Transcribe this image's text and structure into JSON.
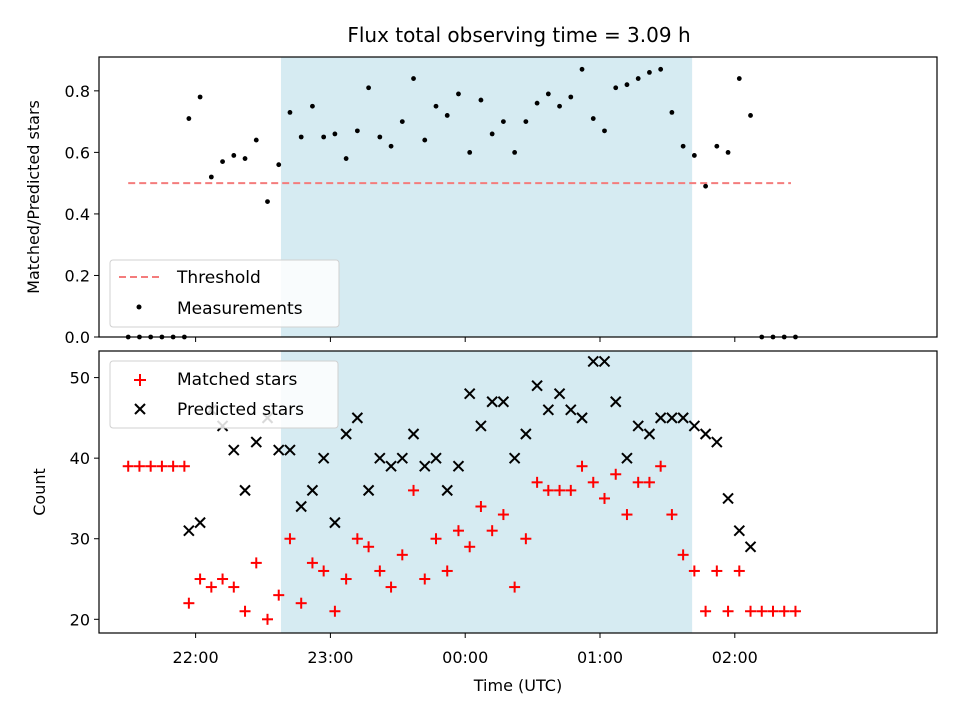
{
  "title": "Flux total observing time = 3.09 h",
  "chart_data": [
    {
      "type": "scatter",
      "panel": "top",
      "ylabel": "Matched/Predicted stars",
      "ylim": [
        0,
        0.91
      ],
      "yticks": [
        0.0,
        0.2,
        0.4,
        0.6,
        0.8
      ],
      "ytick_labels": [
        "0.0",
        "0.2",
        "0.4",
        "0.6",
        "0.8"
      ],
      "threshold": {
        "name": "Threshold",
        "y": 0.5,
        "x_start": "21:30",
        "x_end": "02:25",
        "color": "#f47c7c",
        "style": "dashed"
      },
      "series": [
        {
          "name": "Measurements",
          "marker": "dot",
          "color": "#000000",
          "points": [
            [
              "21:30",
              0.0
            ],
            [
              "21:35",
              0.0
            ],
            [
              "21:40",
              0.0
            ],
            [
              "21:45",
              0.0
            ],
            [
              "21:50",
              0.0
            ],
            [
              "21:55",
              0.0
            ],
            [
              "21:57",
              0.71
            ],
            [
              "22:02",
              0.78
            ],
            [
              "22:07",
              0.52
            ],
            [
              "22:12",
              0.57
            ],
            [
              "22:17",
              0.59
            ],
            [
              "22:22",
              0.58
            ],
            [
              "22:27",
              0.64
            ],
            [
              "22:32",
              0.44
            ],
            [
              "22:37",
              0.56
            ],
            [
              "22:42",
              0.73
            ],
            [
              "22:47",
              0.65
            ],
            [
              "22:52",
              0.75
            ],
            [
              "22:57",
              0.65
            ],
            [
              "23:02",
              0.66
            ],
            [
              "23:07",
              0.58
            ],
            [
              "23:12",
              0.67
            ],
            [
              "23:17",
              0.81
            ],
            [
              "23:22",
              0.65
            ],
            [
              "23:27",
              0.62
            ],
            [
              "23:32",
              0.7
            ],
            [
              "23:37",
              0.84
            ],
            [
              "23:42",
              0.64
            ],
            [
              "23:47",
              0.75
            ],
            [
              "23:52",
              0.72
            ],
            [
              "23:57",
              0.79
            ],
            [
              "00:02",
              0.6
            ],
            [
              "00:07",
              0.77
            ],
            [
              "00:12",
              0.66
            ],
            [
              "00:17",
              0.7
            ],
            [
              "00:22",
              0.6
            ],
            [
              "00:27",
              0.7
            ],
            [
              "00:32",
              0.76
            ],
            [
              "00:37",
              0.79
            ],
            [
              "00:42",
              0.75
            ],
            [
              "00:47",
              0.78
            ],
            [
              "00:52",
              0.87
            ],
            [
              "00:57",
              0.71
            ],
            [
              "01:02",
              0.67
            ],
            [
              "01:07",
              0.81
            ],
            [
              "01:12",
              0.82
            ],
            [
              "01:17",
              0.84
            ],
            [
              "01:22",
              0.86
            ],
            [
              "01:27",
              0.87
            ],
            [
              "01:32",
              0.73
            ],
            [
              "01:37",
              0.62
            ],
            [
              "01:42",
              0.59
            ],
            [
              "01:47",
              0.49
            ],
            [
              "01:52",
              0.62
            ],
            [
              "01:57",
              0.6
            ],
            [
              "02:02",
              0.84
            ],
            [
              "02:07",
              0.72
            ],
            [
              "02:12",
              0.0
            ],
            [
              "02:17",
              0.0
            ],
            [
              "02:22",
              0.0
            ],
            [
              "02:27",
              0.0
            ]
          ]
        }
      ],
      "legend": {
        "placement": "lower-left",
        "entries": [
          "Threshold",
          "Measurements"
        ]
      }
    },
    {
      "type": "scatter",
      "panel": "bottom",
      "ylabel": "Count",
      "xlabel": "Time (UTC)",
      "ylim": [
        18.3,
        53.3
      ],
      "yticks": [
        20,
        30,
        40,
        50
      ],
      "ytick_labels": [
        "20",
        "30",
        "40",
        "50"
      ],
      "series": [
        {
          "name": "Matched stars",
          "marker": "plus",
          "color": "#ff0000",
          "points": [
            [
              "21:30",
              39
            ],
            [
              "21:35",
              39
            ],
            [
              "21:40",
              39
            ],
            [
              "21:45",
              39
            ],
            [
              "21:50",
              39
            ],
            [
              "21:55",
              39
            ],
            [
              "21:57",
              22
            ],
            [
              "22:02",
              25
            ],
            [
              "22:07",
              24
            ],
            [
              "22:12",
              25
            ],
            [
              "22:17",
              24
            ],
            [
              "22:22",
              21
            ],
            [
              "22:27",
              27
            ],
            [
              "22:32",
              20
            ],
            [
              "22:37",
              23
            ],
            [
              "22:42",
              30
            ],
            [
              "22:47",
              22
            ],
            [
              "22:52",
              27
            ],
            [
              "22:57",
              26
            ],
            [
              "23:02",
              21
            ],
            [
              "23:07",
              25
            ],
            [
              "23:12",
              30
            ],
            [
              "23:17",
              29
            ],
            [
              "23:22",
              26
            ],
            [
              "23:27",
              24
            ],
            [
              "23:32",
              28
            ],
            [
              "23:37",
              36
            ],
            [
              "23:42",
              25
            ],
            [
              "23:47",
              30
            ],
            [
              "23:52",
              26
            ],
            [
              "23:57",
              31
            ],
            [
              "00:02",
              29
            ],
            [
              "00:07",
              34
            ],
            [
              "00:12",
              31
            ],
            [
              "00:17",
              33
            ],
            [
              "00:22",
              24
            ],
            [
              "00:27",
              30
            ],
            [
              "00:32",
              37
            ],
            [
              "00:37",
              36
            ],
            [
              "00:42",
              36
            ],
            [
              "00:47",
              36
            ],
            [
              "00:52",
              39
            ],
            [
              "00:57",
              37
            ],
            [
              "01:02",
              35
            ],
            [
              "01:07",
              38
            ],
            [
              "01:12",
              33
            ],
            [
              "01:17",
              37
            ],
            [
              "01:22",
              37
            ],
            [
              "01:27",
              39
            ],
            [
              "01:32",
              33
            ],
            [
              "01:37",
              28
            ],
            [
              "01:42",
              26
            ],
            [
              "01:47",
              21
            ],
            [
              "01:52",
              26
            ],
            [
              "01:57",
              21
            ],
            [
              "02:02",
              26
            ],
            [
              "02:07",
              21
            ],
            [
              "02:12",
              21
            ],
            [
              "02:17",
              21
            ],
            [
              "02:22",
              21
            ],
            [
              "02:27",
              21
            ]
          ]
        },
        {
          "name": "Predicted stars",
          "marker": "x",
          "color": "#000000",
          "points": [
            [
              "21:57",
              31
            ],
            [
              "22:02",
              32
            ],
            [
              "22:07",
              46
            ],
            [
              "22:12",
              44
            ],
            [
              "22:17",
              41
            ],
            [
              "22:22",
              36
            ],
            [
              "22:27",
              42
            ],
            [
              "22:32",
              45
            ],
            [
              "22:37",
              41
            ],
            [
              "22:42",
              41
            ],
            [
              "22:47",
              34
            ],
            [
              "22:52",
              36
            ],
            [
              "22:57",
              40
            ],
            [
              "23:02",
              32
            ],
            [
              "23:07",
              43
            ],
            [
              "23:12",
              45
            ],
            [
              "23:17",
              36
            ],
            [
              "23:22",
              40
            ],
            [
              "23:27",
              39
            ],
            [
              "23:32",
              40
            ],
            [
              "23:37",
              43
            ],
            [
              "23:42",
              39
            ],
            [
              "23:47",
              40
            ],
            [
              "23:52",
              36
            ],
            [
              "23:57",
              39
            ],
            [
              "00:02",
              48
            ],
            [
              "00:07",
              44
            ],
            [
              "00:12",
              47
            ],
            [
              "00:17",
              47
            ],
            [
              "00:22",
              40
            ],
            [
              "00:27",
              43
            ],
            [
              "00:32",
              49
            ],
            [
              "00:37",
              46
            ],
            [
              "00:42",
              48
            ],
            [
              "00:47",
              46
            ],
            [
              "00:52",
              45
            ],
            [
              "00:57",
              52
            ],
            [
              "01:02",
              52
            ],
            [
              "01:07",
              47
            ],
            [
              "01:12",
              40
            ],
            [
              "01:17",
              44
            ],
            [
              "01:22",
              43
            ],
            [
              "01:27",
              45
            ],
            [
              "01:32",
              45
            ],
            [
              "01:37",
              45
            ],
            [
              "01:42",
              44
            ],
            [
              "01:47",
              43
            ],
            [
              "01:52",
              42
            ],
            [
              "01:57",
              35
            ],
            [
              "02:02",
              31
            ],
            [
              "02:07",
              29
            ]
          ]
        }
      ],
      "legend": {
        "placement": "upper-left",
        "entries": [
          "Matched stars",
          "Predicted stars"
        ]
      }
    }
  ],
  "shared_x": {
    "xlim": [
      "21:17",
      "03:30"
    ],
    "xticks": [
      "22:00",
      "23:00",
      "00:00",
      "01:00",
      "02:00"
    ],
    "observing_window": {
      "start": "22:38",
      "end": "01:41",
      "color": "#add8e6"
    }
  }
}
